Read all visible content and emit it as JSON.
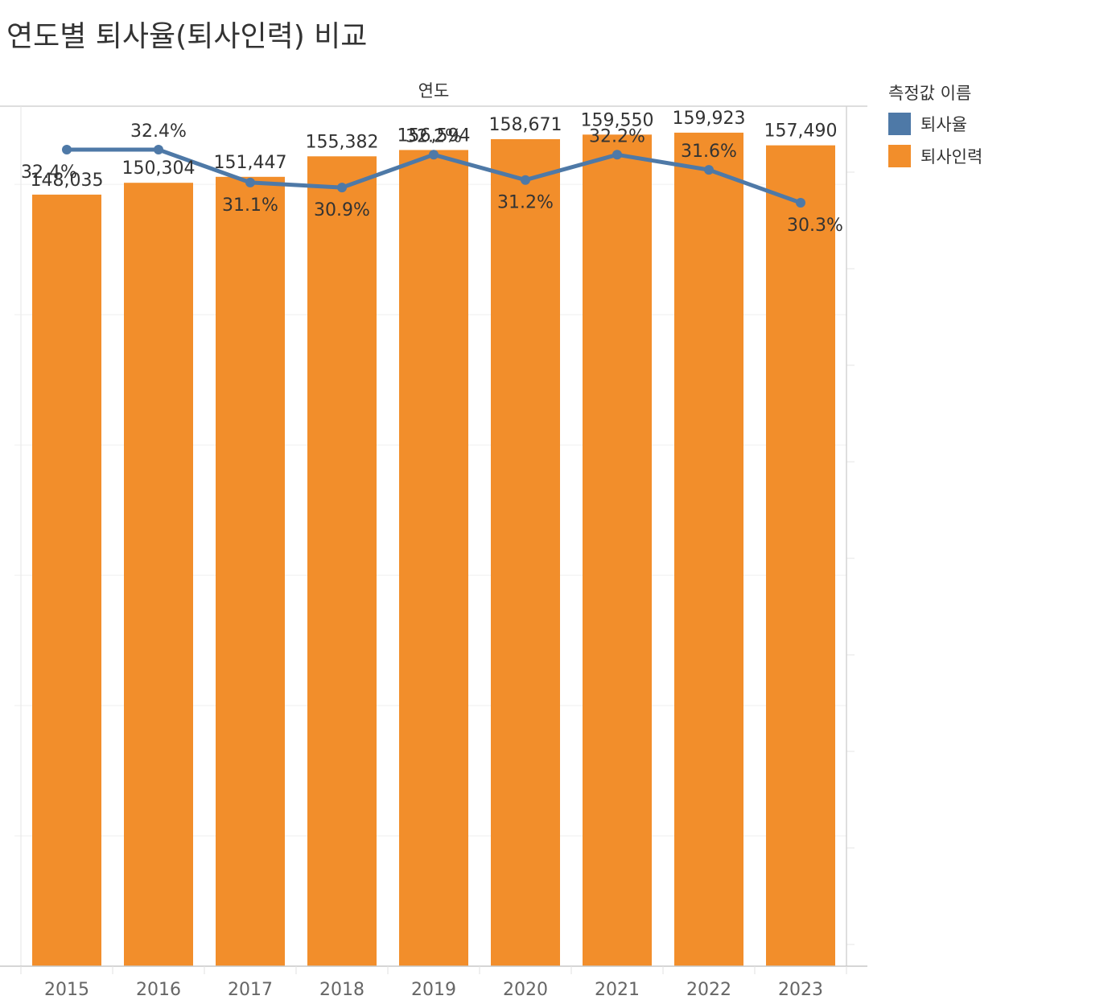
{
  "title": "연도별 퇴사율(퇴사인력) 비교",
  "chart_data": {
    "type": "bar",
    "column_header": "연도",
    "categories": [
      "2015",
      "2016",
      "2017",
      "2018",
      "2019",
      "2020",
      "2021",
      "2022",
      "2023"
    ],
    "series": [
      {
        "name": "퇴사율",
        "type": "line",
        "color": "#4e79a7",
        "values": [
          32.4,
          32.4,
          31.1,
          30.9,
          32.2,
          31.2,
          32.2,
          31.6,
          30.3
        ],
        "labels": [
          "32.4%",
          "32.4%",
          "31.1%",
          "30.9%",
          "32.2%",
          "31.2%",
          "32.2%",
          "31.6%",
          "30.3%"
        ]
      },
      {
        "name": "퇴사인력",
        "type": "bar",
        "color": "#f28e2b",
        "values": [
          148035,
          150304,
          151447,
          155382,
          156594,
          158671,
          159550,
          159923,
          157490
        ],
        "labels": [
          "148,035",
          "150,304",
          "151,447",
          "155,382",
          "156,594",
          "158,671",
          "159,550",
          "159,923",
          "157,490"
        ]
      }
    ],
    "legend": {
      "title": "측정값 이름",
      "position": "right"
    },
    "grid": true
  }
}
